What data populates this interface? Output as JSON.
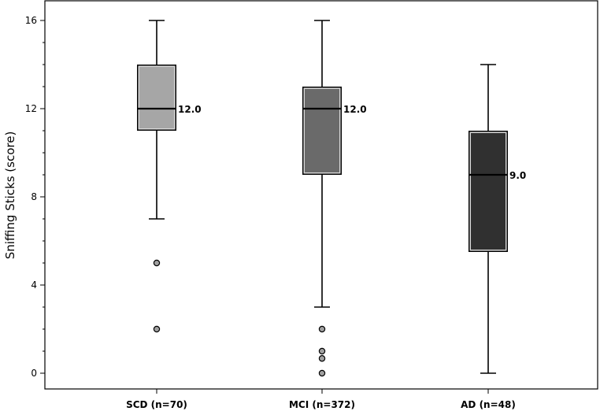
{
  "chart_data": {
    "type": "box",
    "ylabel": "Sniffing Sticks (score)",
    "xlabel": "",
    "ylim": [
      0,
      16
    ],
    "yticks": [
      0,
      4,
      8,
      12,
      16
    ],
    "grid": false,
    "boxes": [
      {
        "category": "SCD (n=70)",
        "whisker_low": 7,
        "q1": 11,
        "median": 12,
        "q3": 14,
        "whisker_high": 16,
        "median_label": "12.0",
        "outliers": [
          5,
          2
        ],
        "color": "#a6a6a6"
      },
      {
        "category": "MCI (n=372)",
        "whisker_low": 3,
        "q1": 9,
        "median": 12,
        "q3": 13,
        "whisker_high": 16,
        "median_label": "12.0",
        "outliers": [
          2,
          1,
          0.67,
          0
        ],
        "color": "#6a6a6a"
      },
      {
        "category": "AD (n=48)",
        "whisker_low": 0,
        "q1": 5.5,
        "median": 9,
        "q3": 11,
        "whisker_high": 14,
        "median_label": "9.0",
        "outliers": [],
        "color": "#303030"
      }
    ]
  }
}
